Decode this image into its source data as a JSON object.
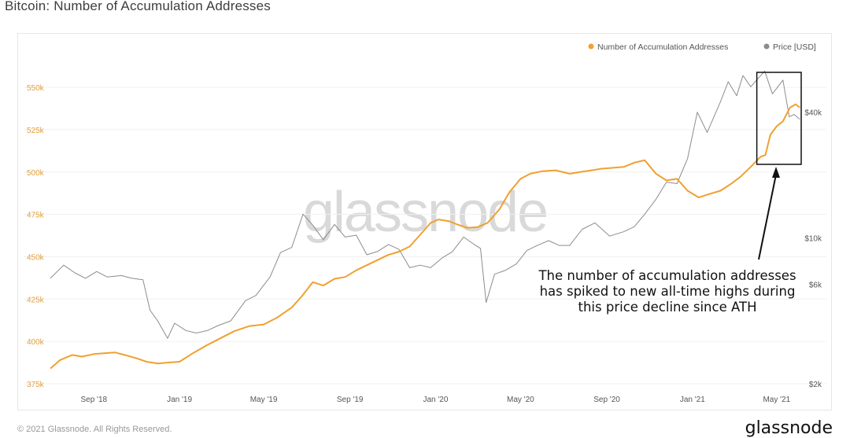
{
  "page": {
    "title": "Bitcoin: Number of Accumulation Addresses",
    "watermark": "glassnode",
    "footer_left": "© 2021 Glassnode. All Rights Reserved.",
    "footer_logo": "glassnode"
  },
  "annotation": {
    "lines": [
      "The number of accumulation addresses",
      "has spiked to new all-time highs during",
      "this price decline since ATH"
    ]
  },
  "chart_data": {
    "type": "line",
    "title": "Bitcoin: Number of Accumulation Addresses",
    "x_ticks": [
      "Sep '18",
      "Jan '19",
      "May '19",
      "Sep '19",
      "Jan '20",
      "May '20",
      "Sep '20",
      "Jan '21",
      "May '21"
    ],
    "x_range": [
      "2018-07-01",
      "2021-06-05"
    ],
    "left_axis": {
      "ticks": [
        "375k",
        "400k",
        "425k",
        "450k",
        "475k",
        "500k",
        "525k",
        "550k"
      ],
      "range": [
        375000,
        557000
      ]
    },
    "right_axis": {
      "scale": "log",
      "ticks": [
        "$2k",
        "$6k",
        "$10k",
        "$40k"
      ],
      "range": [
        2000,
        60000
      ]
    },
    "legend": {
      "position": "top-right"
    },
    "colors": {
      "accumulation": "#f0a030",
      "price": "#8c8c8c",
      "left_axis_text": "#e0a040",
      "right_axis_text": "#555555"
    },
    "series": [
      {
        "name": "Number of Accumulation Addresses",
        "axis": "left",
        "points": [
          [
            "2018-07-01",
            384000
          ],
          [
            "2018-07-15",
            389000
          ],
          [
            "2018-08-01",
            392000
          ],
          [
            "2018-08-15",
            391000
          ],
          [
            "2018-09-01",
            392500
          ],
          [
            "2018-09-15",
            393000
          ],
          [
            "2018-10-01",
            393500
          ],
          [
            "2018-10-15",
            392000
          ],
          [
            "2018-11-01",
            390000
          ],
          [
            "2018-11-15",
            388000
          ],
          [
            "2018-12-01",
            387000
          ],
          [
            "2018-12-15",
            387500
          ],
          [
            "2019-01-01",
            388000
          ],
          [
            "2019-01-20",
            393000
          ],
          [
            "2019-02-10",
            398000
          ],
          [
            "2019-03-01",
            402000
          ],
          [
            "2019-03-20",
            406000
          ],
          [
            "2019-04-10",
            409000
          ],
          [
            "2019-05-01",
            410000
          ],
          [
            "2019-05-20",
            414000
          ],
          [
            "2019-06-10",
            420000
          ],
          [
            "2019-06-25",
            427000
          ],
          [
            "2019-07-10",
            435000
          ],
          [
            "2019-07-25",
            433000
          ],
          [
            "2019-08-10",
            437000
          ],
          [
            "2019-08-25",
            438000
          ],
          [
            "2019-09-10",
            442000
          ],
          [
            "2019-09-25",
            445000
          ],
          [
            "2019-10-10",
            448000
          ],
          [
            "2019-10-25",
            451000
          ],
          [
            "2019-11-10",
            453000
          ],
          [
            "2019-11-25",
            456000
          ],
          [
            "2019-12-10",
            463000
          ],
          [
            "2019-12-25",
            470000
          ],
          [
            "2020-01-05",
            472000
          ],
          [
            "2020-01-20",
            471000
          ],
          [
            "2020-02-01",
            469000
          ],
          [
            "2020-02-15",
            467000
          ],
          [
            "2020-03-01",
            467500
          ],
          [
            "2020-03-15",
            470000
          ],
          [
            "2020-04-01",
            478000
          ],
          [
            "2020-04-15",
            488000
          ],
          [
            "2020-05-01",
            496000
          ],
          [
            "2020-05-15",
            499000
          ],
          [
            "2020-06-01",
            500500
          ],
          [
            "2020-06-20",
            501000
          ],
          [
            "2020-07-10",
            499000
          ],
          [
            "2020-07-25",
            500000
          ],
          [
            "2020-08-10",
            501000
          ],
          [
            "2020-08-25",
            502000
          ],
          [
            "2020-09-10",
            502500
          ],
          [
            "2020-09-25",
            503000
          ],
          [
            "2020-10-10",
            505500
          ],
          [
            "2020-10-25",
            507000
          ],
          [
            "2020-11-10",
            499000
          ],
          [
            "2020-11-25",
            495000
          ],
          [
            "2020-12-10",
            496000
          ],
          [
            "2020-12-25",
            489000
          ],
          [
            "2021-01-10",
            485000
          ],
          [
            "2021-01-25",
            487000
          ],
          [
            "2021-02-10",
            489000
          ],
          [
            "2021-02-25",
            493000
          ],
          [
            "2021-03-10",
            497000
          ],
          [
            "2021-03-25",
            503000
          ],
          [
            "2021-04-08",
            509000
          ],
          [
            "2021-04-15",
            510000
          ],
          [
            "2021-04-22",
            522000
          ],
          [
            "2021-05-01",
            527000
          ],
          [
            "2021-05-10",
            530000
          ],
          [
            "2021-05-20",
            538000
          ],
          [
            "2021-05-28",
            540000
          ],
          [
            "2021-06-03",
            538000
          ]
        ]
      },
      {
        "name": "Price [USD]",
        "axis": "right",
        "points": [
          [
            "2018-07-01",
            6400
          ],
          [
            "2018-07-20",
            7400
          ],
          [
            "2018-08-05",
            6800
          ],
          [
            "2018-08-20",
            6400
          ],
          [
            "2018-09-05",
            6900
          ],
          [
            "2018-09-20",
            6500
          ],
          [
            "2018-10-10",
            6600
          ],
          [
            "2018-10-25",
            6400
          ],
          [
            "2018-11-10",
            6300
          ],
          [
            "2018-11-20",
            4500
          ],
          [
            "2018-12-01",
            4000
          ],
          [
            "2018-12-15",
            3300
          ],
          [
            "2018-12-25",
            3900
          ],
          [
            "2019-01-10",
            3600
          ],
          [
            "2019-01-25",
            3500
          ],
          [
            "2019-02-10",
            3600
          ],
          [
            "2019-02-25",
            3800
          ],
          [
            "2019-03-15",
            4000
          ],
          [
            "2019-04-05",
            5000
          ],
          [
            "2019-04-20",
            5300
          ],
          [
            "2019-05-10",
            6500
          ],
          [
            "2019-05-25",
            8500
          ],
          [
            "2019-06-10",
            9000
          ],
          [
            "2019-06-26",
            13000
          ],
          [
            "2019-07-10",
            11500
          ],
          [
            "2019-07-25",
            9800
          ],
          [
            "2019-08-10",
            11600
          ],
          [
            "2019-08-25",
            10100
          ],
          [
            "2019-09-10",
            10300
          ],
          [
            "2019-09-25",
            8300
          ],
          [
            "2019-10-10",
            8600
          ],
          [
            "2019-10-26",
            9300
          ],
          [
            "2019-11-10",
            8800
          ],
          [
            "2019-11-25",
            7200
          ],
          [
            "2019-12-10",
            7400
          ],
          [
            "2019-12-25",
            7200
          ],
          [
            "2020-01-10",
            8000
          ],
          [
            "2020-01-25",
            8600
          ],
          [
            "2020-02-10",
            10100
          ],
          [
            "2020-02-25",
            9300
          ],
          [
            "2020-03-05",
            8900
          ],
          [
            "2020-03-13",
            4900
          ],
          [
            "2020-03-25",
            6700
          ],
          [
            "2020-04-10",
            7000
          ],
          [
            "2020-04-25",
            7500
          ],
          [
            "2020-05-10",
            8700
          ],
          [
            "2020-05-25",
            9200
          ],
          [
            "2020-06-10",
            9700
          ],
          [
            "2020-06-25",
            9200
          ],
          [
            "2020-07-10",
            9200
          ],
          [
            "2020-07-28",
            11000
          ],
          [
            "2020-08-15",
            11800
          ],
          [
            "2020-09-05",
            10200
          ],
          [
            "2020-09-25",
            10700
          ],
          [
            "2020-10-10",
            11300
          ],
          [
            "2020-10-25",
            13000
          ],
          [
            "2020-11-10",
            15300
          ],
          [
            "2020-11-25",
            18500
          ],
          [
            "2020-12-10",
            18200
          ],
          [
            "2020-12-25",
            24000
          ],
          [
            "2021-01-08",
            40000
          ],
          [
            "2021-01-22",
            32000
          ],
          [
            "2021-02-10",
            45000
          ],
          [
            "2021-02-21",
            56000
          ],
          [
            "2021-03-05",
            48000
          ],
          [
            "2021-03-14",
            60000
          ],
          [
            "2021-03-25",
            53000
          ],
          [
            "2021-04-14",
            63000
          ],
          [
            "2021-04-25",
            49000
          ],
          [
            "2021-05-10",
            57000
          ],
          [
            "2021-05-19",
            38000
          ],
          [
            "2021-05-26",
            39000
          ],
          [
            "2021-06-03",
            37000
          ]
        ]
      }
    ],
    "highlight_range": [
      "2021-04-05",
      "2021-06-05"
    ]
  }
}
